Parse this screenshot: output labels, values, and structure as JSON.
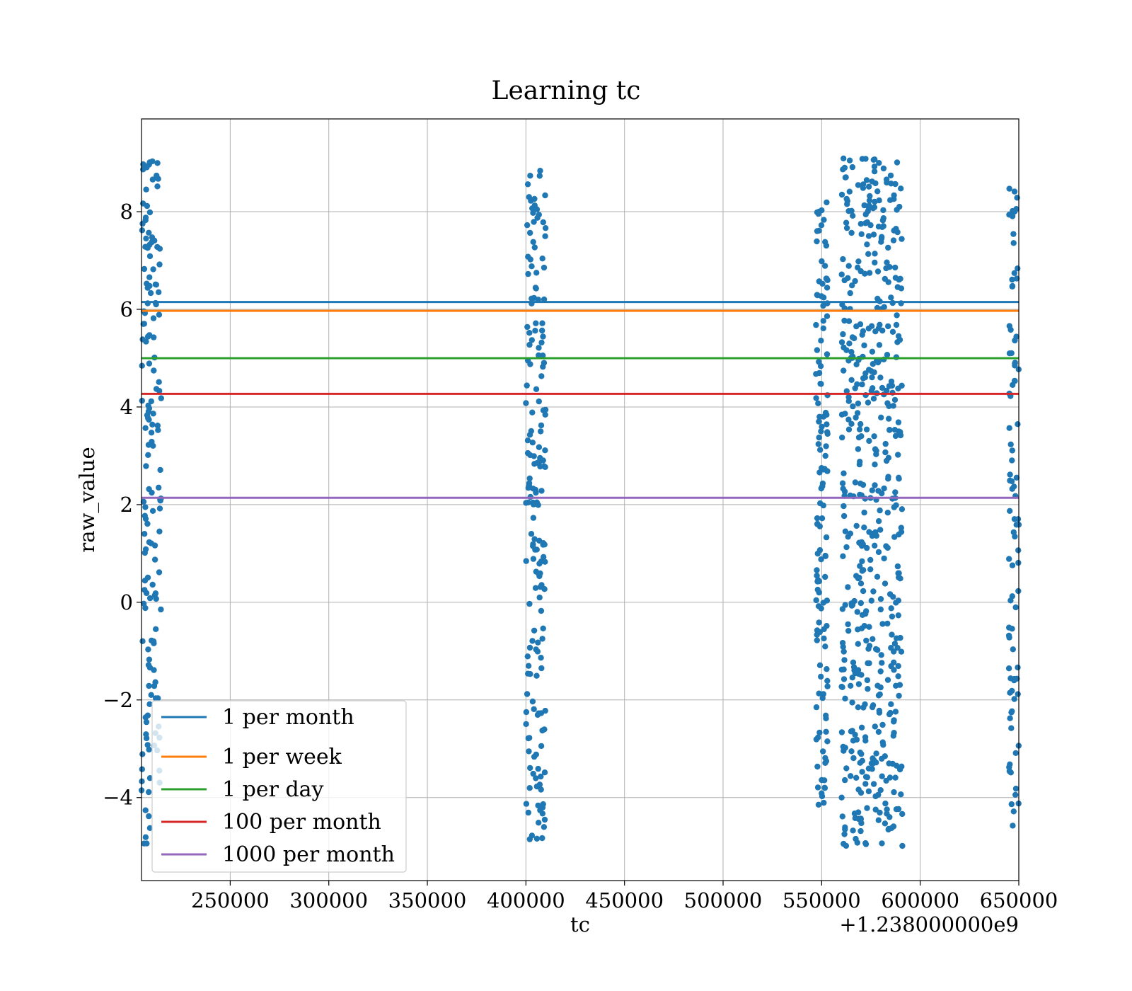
{
  "chart_data": {
    "type": "scatter",
    "title": "Learning tc",
    "xlabel": "tc",
    "ylabel": "raw_value",
    "x_offset_text": "+1.238000000e9",
    "xlim": [
      205000,
      650000
    ],
    "ylim": [
      -5.7,
      9.9
    ],
    "xticks": [
      250000,
      300000,
      350000,
      400000,
      450000,
      500000,
      550000,
      600000,
      650000
    ],
    "xtick_labels": [
      "250000",
      "300000",
      "350000",
      "400000",
      "450000",
      "500000",
      "550000",
      "600000",
      "650000"
    ],
    "yticks": [
      -4,
      -2,
      0,
      2,
      4,
      6,
      8
    ],
    "ytick_labels": [
      "−4",
      "−2",
      "0",
      "2",
      "4",
      "6",
      "8"
    ],
    "grid": true,
    "legend_position": "lower-left",
    "scatter": {
      "color": "#1f77b4",
      "clusters": [
        {
          "x_range": [
            205000,
            215000
          ],
          "y_range": [
            -5.0,
            9.2
          ],
          "count": 160
        },
        {
          "x_range": [
            400000,
            410000
          ],
          "y_range": [
            -4.9,
            8.9
          ],
          "count": 180
        },
        {
          "x_range": [
            547000,
            553000
          ],
          "y_range": [
            -4.2,
            8.2
          ],
          "count": 130
        },
        {
          "x_range": [
            560000,
            591000
          ],
          "y_range": [
            -5.0,
            9.1
          ],
          "count": 520
        },
        {
          "x_range": [
            645000,
            650000
          ],
          "y_range": [
            -4.8,
            8.5
          ],
          "count": 90
        }
      ]
    },
    "series": [
      {
        "name": "1 per month",
        "y": 6.15,
        "color": "#1f77b4"
      },
      {
        "name": "1 per week",
        "y": 5.97,
        "color": "#ff7f0e"
      },
      {
        "name": "1 per day",
        "y": 5.0,
        "color": "#2ca02c"
      },
      {
        "name": "100 per month",
        "y": 4.27,
        "color": "#d62728"
      },
      {
        "name": "1000 per month",
        "y": 2.14,
        "color": "#9467bd"
      }
    ]
  }
}
